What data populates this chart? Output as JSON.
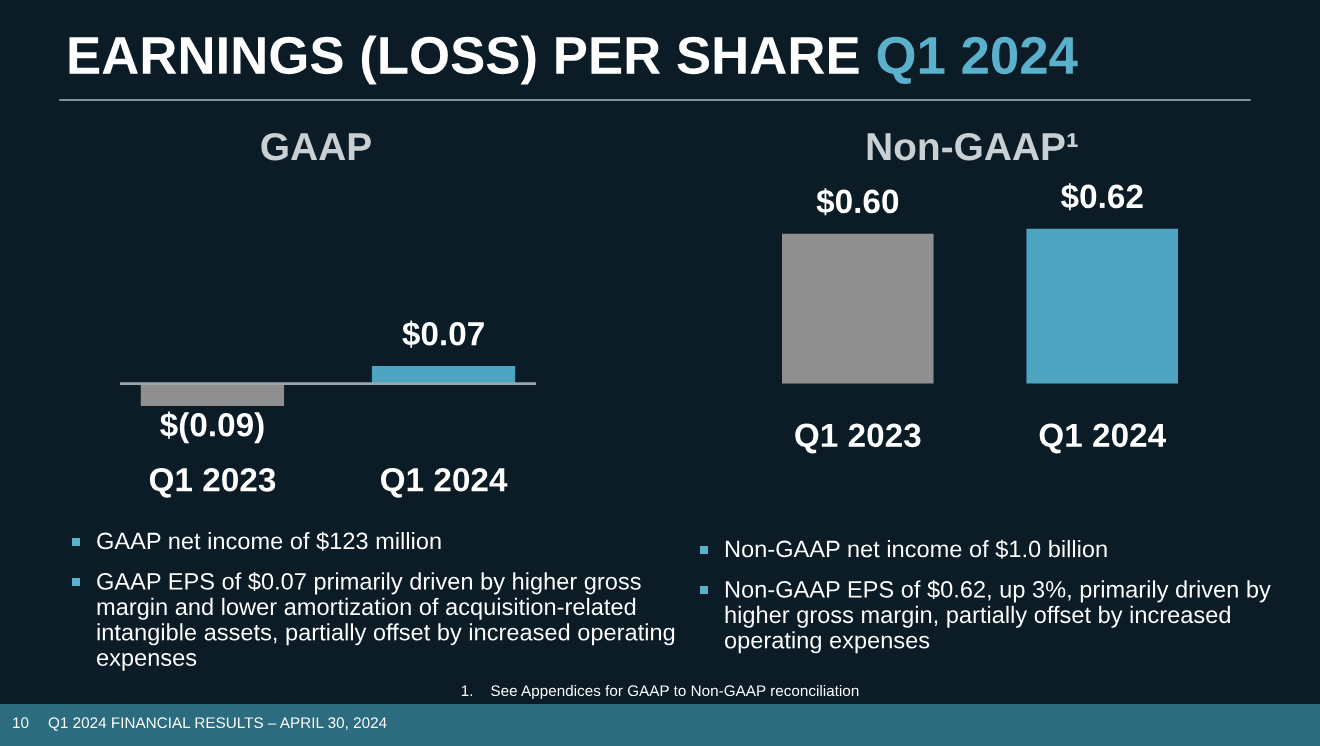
{
  "chart_data": [
    {
      "type": "bar",
      "title": "EARNINGS (LOSS) PER SHARE Q1 2024",
      "subtitle": "GAAP",
      "categories": [
        "Q1 2023",
        "Q1 2024"
      ],
      "values": [
        -0.09,
        0.07
      ],
      "colors": [
        "#8f8f8f",
        "#4ea5c2"
      ],
      "value_labels": [
        "$(0.09)",
        "$0.07"
      ],
      "grid": false,
      "legend": false,
      "annotations": [
        "GAAP net income of $123 million",
        "GAAP EPS of $0.07 primarily driven by higher gross margin and lower amortization of acquisition-related intangible assets, partially offset by increased operating expenses"
      ]
    },
    {
      "type": "bar",
      "title": "Non-GAAP¹",
      "categories": [
        "Q1 2023",
        "Q1 2024"
      ],
      "values": [
        0.6,
        0.62
      ],
      "colors": [
        "#8f8f8f",
        "#4ea5c2"
      ],
      "value_labels": [
        "$0.60",
        "$0.62"
      ],
      "grid": false,
      "legend": false,
      "annotations": [
        "Non-GAAP net income of $1.0 billion",
        "Non-GAAP EPS of $0.62, up 3%, primarily driven by higher gross margin, partially offset by increased operating expenses",
        "1.    See Appendices for GAAP to Non-GAAP reconciliation",
        "10",
        "Q1 2024 FINANCIAL RESULTS – APRIL 30, 2024"
      ]
    }
  ]
}
